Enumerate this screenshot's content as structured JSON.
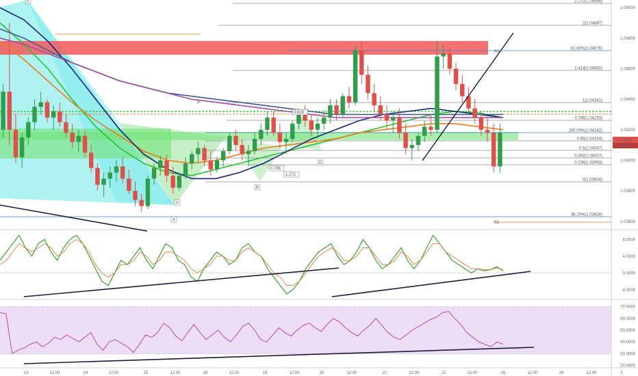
{
  "colors": {
    "up": "#2e9e4a",
    "down": "#e0504a",
    "ma_green": "#22c42a",
    "ma_orange": "#f07b1e",
    "ma_navy": "#1a237e",
    "ma_steel": "#3d5a8a",
    "ma_purple": "#a04aa8",
    "osc_green": "#3aa32e",
    "osc_orange": "#e07a3a",
    "rsi_line": "#b44ab4",
    "rsi_band": "#ead8f5",
    "zone_red": "#f3595b",
    "zone_green": "#74e27a",
    "harmonic_cyan": "#6de8e8",
    "harmonic_green": "#8fe08f",
    "fib_line": "#8c8c8c",
    "price_badge": "#e0504a"
  },
  "chart_data": [
    {
      "type": "line",
      "title": "",
      "x_ticks": [
        "13",
        "12:00",
        "14",
        "12:00",
        "15",
        "12:00",
        "18",
        "12:00",
        "19",
        "12:00",
        "20",
        "12:00",
        "21",
        "12:00",
        "22",
        "12:00",
        "26",
        "12:00",
        "26",
        "12:00",
        "2"
      ],
      "y_ticks": [
        "1.05000",
        "1.04800",
        "1.04600",
        "1.04400",
        "1.04200",
        "1.04000",
        "1.03800",
        "1.03600"
      ],
      "ylim": [
        1.0355,
        1.0505
      ],
      "candles": [
        [
          1.042,
          1.045,
          1.0415,
          1.0445
        ],
        [
          1.0445,
          1.049,
          1.041,
          1.042
        ],
        [
          1.042,
          1.043,
          1.0398,
          1.0402
        ],
        [
          1.0402,
          1.0418,
          1.0395,
          1.0415
        ],
        [
          1.0415,
          1.0428,
          1.041,
          1.0425
        ],
        [
          1.0425,
          1.044,
          1.042,
          1.0435
        ],
        [
          1.0435,
          1.0445,
          1.043,
          1.0438
        ],
        [
          1.0438,
          1.044,
          1.0425,
          1.0428
        ],
        [
          1.0428,
          1.0436,
          1.042,
          1.0432
        ],
        [
          1.0432,
          1.0438,
          1.0422,
          1.0425
        ],
        [
          1.0425,
          1.043,
          1.0415,
          1.0418
        ],
        [
          1.0418,
          1.0424,
          1.0408,
          1.0412
        ],
        [
          1.0412,
          1.042,
          1.0405,
          1.0416
        ],
        [
          1.0416,
          1.042,
          1.0402,
          1.0405
        ],
        [
          1.0405,
          1.041,
          1.0392,
          1.0395
        ],
        [
          1.0395,
          1.0398,
          1.038,
          1.0384
        ],
        [
          1.0384,
          1.0392,
          1.0376,
          1.0388
        ],
        [
          1.0388,
          1.0396,
          1.0382,
          1.0392
        ],
        [
          1.0392,
          1.04,
          1.0386,
          1.0396
        ],
        [
          1.0396,
          1.0402,
          1.0385,
          1.0388
        ],
        [
          1.0388,
          1.0394,
          1.0378,
          1.038
        ],
        [
          1.038,
          1.0386,
          1.037,
          1.0374
        ],
        [
          1.0374,
          1.0378,
          1.0366,
          1.037
        ],
        [
          1.037,
          1.039,
          1.0368,
          1.0388
        ],
        [
          1.0388,
          1.0398,
          1.0384,
          1.0395
        ],
        [
          1.0395,
          1.0403,
          1.039,
          1.04
        ],
        [
          1.04,
          1.0404,
          1.0386,
          1.039
        ],
        [
          1.039,
          1.0396,
          1.0378,
          1.0382
        ],
        [
          1.0382,
          1.0392,
          1.038,
          1.039
        ],
        [
          1.039,
          1.0402,
          1.0388,
          1.0398
        ],
        [
          1.0398,
          1.0406,
          1.0394,
          1.0404
        ],
        [
          1.0404,
          1.0412,
          1.0398,
          1.0408
        ],
        [
          1.0408,
          1.041,
          1.0396,
          1.04
        ],
        [
          1.04,
          1.0406,
          1.039,
          1.0394
        ],
        [
          1.0394,
          1.0402,
          1.0392,
          1.04
        ],
        [
          1.04,
          1.0408,
          1.0396,
          1.0406
        ],
        [
          1.0406,
          1.0418,
          1.0404,
          1.0416
        ],
        [
          1.0416,
          1.042,
          1.0406,
          1.041
        ],
        [
          1.041,
          1.0414,
          1.04,
          1.0404
        ],
        [
          1.0404,
          1.041,
          1.0396,
          1.0406
        ],
        [
          1.0406,
          1.0418,
          1.0404,
          1.0414
        ],
        [
          1.0414,
          1.0424,
          1.041,
          1.042
        ],
        [
          1.042,
          1.0432,
          1.0416,
          1.0428
        ],
        [
          1.0428,
          1.0432,
          1.0416,
          1.0418
        ],
        [
          1.0418,
          1.0424,
          1.0408,
          1.0412
        ],
        [
          1.0412,
          1.0418,
          1.0404,
          1.0414
        ],
        [
          1.0414,
          1.0426,
          1.0412,
          1.0424
        ],
        [
          1.0424,
          1.0434,
          1.042,
          1.043
        ],
        [
          1.043,
          1.0436,
          1.0422,
          1.0426
        ],
        [
          1.0426,
          1.043,
          1.0416,
          1.042
        ],
        [
          1.042,
          1.0428,
          1.0414,
          1.0424
        ],
        [
          1.0424,
          1.0432,
          1.042,
          1.0428
        ],
        [
          1.0428,
          1.044,
          1.0424,
          1.0436
        ],
        [
          1.0436,
          1.044,
          1.0426,
          1.043
        ],
        [
          1.043,
          1.0444,
          1.0428,
          1.0442
        ],
        [
          1.0442,
          1.0448,
          1.0434,
          1.0438
        ],
        [
          1.0438,
          1.0476,
          1.0436,
          1.0472
        ],
        [
          1.0472,
          1.0478,
          1.045,
          1.0456
        ],
        [
          1.0456,
          1.0462,
          1.044,
          1.0444
        ],
        [
          1.0444,
          1.045,
          1.0432,
          1.0436
        ],
        [
          1.0436,
          1.0442,
          1.0426,
          1.043
        ],
        [
          1.043,
          1.0436,
          1.042,
          1.0426
        ],
        [
          1.0426,
          1.0432,
          1.0418,
          1.0428
        ],
        [
          1.0428,
          1.0434,
          1.0414,
          1.0418
        ],
        [
          1.0418,
          1.0424,
          1.0404,
          1.0408
        ],
        [
          1.0408,
          1.0414,
          1.04,
          1.041
        ],
        [
          1.041,
          1.0418,
          1.0406,
          1.0416
        ],
        [
          1.0416,
          1.0426,
          1.0412,
          1.0422
        ],
        [
          1.0422,
          1.043,
          1.0416,
          1.042
        ],
        [
          1.042,
          1.0478,
          1.0418,
          1.0468
        ],
        [
          1.0468,
          1.0476,
          1.046,
          1.047
        ],
        [
          1.047,
          1.0474,
          1.0456,
          1.046
        ],
        [
          1.046,
          1.0464,
          1.0446,
          1.045
        ],
        [
          1.045,
          1.0456,
          1.0438,
          1.0442
        ],
        [
          1.0442,
          1.0448,
          1.043,
          1.0434
        ],
        [
          1.0434,
          1.044,
          1.0424,
          1.0428
        ],
        [
          1.0428,
          1.0432,
          1.0416,
          1.042
        ],
        [
          1.042,
          1.0428,
          1.0412,
          1.0418
        ],
        [
          1.0418,
          1.0424,
          1.0392,
          1.0396
        ],
        [
          1.0396,
          1.0424,
          1.0392,
          1.0418
        ]
      ],
      "series": [
        {
          "values": [
            1.049,
            1.0476,
            1.046,
            1.044,
            1.0422,
            1.0408,
            1.0398,
            1.0392,
            1.039,
            1.0394,
            1.0398,
            1.0402,
            1.0406,
            1.041,
            1.0414,
            1.0418,
            1.0422,
            1.0426,
            1.043,
            1.0432,
            1.0431,
            1.0428
          ]
        },
        {
          "values": [
            1.0478,
            1.0466,
            1.0452,
            1.0438,
            1.0426,
            1.0416,
            1.0406,
            1.04,
            1.0398,
            1.04,
            1.0404,
            1.0408,
            1.041,
            1.0412,
            1.0414,
            1.0418,
            1.042,
            1.0422,
            1.0424,
            1.0424,
            1.0422,
            1.042
          ]
        },
        {
          "values": [
            1.05,
            1.0492,
            1.0478,
            1.046,
            1.044,
            1.042,
            1.0404,
            1.0394,
            1.0388,
            1.0388,
            1.0392,
            1.0398,
            1.0406,
            1.0414,
            1.042,
            1.0426,
            1.043,
            1.0432,
            1.0434,
            1.0432,
            1.043,
            1.0428
          ]
        },
        {
          "values": [
            1.0486,
            1.048,
            1.0472,
            1.0464,
            1.0458,
            1.0452,
            1.0448,
            1.0444,
            1.0442,
            1.044,
            1.0438,
            1.0436,
            1.0434,
            1.0432,
            1.043,
            1.043,
            1.043,
            1.043,
            1.043,
            1.043,
            1.043,
            1.043
          ]
        },
        {
          "values": [
            1.048,
            1.0476,
            1.047,
            1.0464,
            1.0458,
            1.0452,
            1.0448,
            1.0444,
            1.044,
            1.0438,
            1.0436,
            1.0434,
            1.0432,
            1.043,
            1.0428,
            1.0428,
            1.0428,
            1.0428,
            1.0428,
            1.0428,
            1.0428,
            1.0428
          ]
        }
      ]
    },
    {
      "type": "line",
      "y_ticks": [
        "8.0000",
        "4.0000",
        "0.0000",
        "-4.0000"
      ],
      "ylim": [
        -6,
        10
      ],
      "series": [
        {
          "values": [
            3,
            5,
            7,
            9,
            6,
            4,
            7,
            8,
            5,
            3,
            6,
            8,
            9,
            7,
            4,
            1,
            -2,
            -3,
            0,
            3,
            2,
            4,
            6,
            3,
            1,
            4,
            7,
            6,
            3,
            2,
            -1,
            -2,
            1,
            3,
            5,
            4,
            2,
            3,
            6,
            7,
            5,
            4,
            1,
            -1,
            -3,
            -5,
            -4,
            -2,
            1,
            3,
            5,
            6,
            7,
            4,
            2,
            3,
            5,
            8,
            6,
            3,
            1,
            2,
            4,
            6,
            3,
            1,
            3,
            6,
            9,
            7,
            5,
            3,
            2,
            1,
            0,
            1,
            0.5,
            0.8,
            1.5,
            0.5
          ]
        },
        {
          "values": [
            2,
            3,
            5,
            7,
            6,
            5,
            6,
            7,
            6,
            4,
            5,
            7,
            8,
            7,
            5,
            2,
            0,
            -1,
            0,
            2,
            2,
            3,
            5,
            4,
            2,
            3,
            5,
            5,
            4,
            3,
            1,
            0,
            1,
            2,
            4,
            4,
            3,
            3,
            5,
            6,
            5,
            4,
            2,
            0,
            -1,
            -3,
            -3,
            -2,
            0,
            2,
            4,
            5,
            6,
            5,
            3,
            3,
            4,
            6,
            6,
            4,
            2,
            2,
            3,
            5,
            4,
            2,
            3,
            5,
            7,
            7,
            5,
            4,
            3,
            2,
            1,
            1,
            0.8,
            0.8,
            1.2,
            0.8
          ]
        }
      ]
    },
    {
      "type": "line",
      "y_ticks": [
        "70.0000",
        "60.0000",
        "50.0000",
        "40.0000",
        "30.0000",
        "20.0000"
      ],
      "ylim": [
        18,
        75
      ],
      "series": [
        {
          "values": [
            65,
            64,
            30,
            33,
            35,
            38,
            40,
            36,
            39,
            44,
            42,
            46,
            43,
            40,
            44,
            48,
            38,
            33,
            40,
            42,
            39,
            36,
            31,
            38,
            46,
            44,
            48,
            56,
            52,
            45,
            41,
            48,
            55,
            48,
            42,
            46,
            50,
            44,
            40,
            46,
            53,
            56,
            50,
            42,
            40,
            46,
            52,
            48,
            45,
            50,
            54,
            56,
            52,
            49,
            55,
            60,
            57,
            52,
            48,
            45,
            50,
            54,
            60,
            54,
            48,
            44,
            42,
            46,
            50,
            53,
            56,
            59,
            61,
            65,
            66,
            60,
            55,
            48,
            44,
            40,
            38,
            36,
            40,
            38
          ]
        }
      ]
    }
  ],
  "fib_levels": [
    "2.272(1.04985)",
    "2(1.04847)",
    "61.80%(1.04676)",
    "1.414(1.04550)",
    "1(1.04341)",
    "0.786(1.04233)",
    "100.00%(1.04182)",
    "0.65(1.04164)",
    "0.5(1.04087)",
    "0.382(1.04027)",
    "0.236(1.03953)",
    "0(1.03834)",
    "38.20%(1.03628)"
  ],
  "price_badge": {
    "price": "1.04116",
    "countdown": "54:33"
  },
  "markers": {
    "pivot": "P",
    "resistance": "R1",
    "support": "S1"
  },
  "harmonic_labels": [
    "X",
    "A",
    "B",
    "C",
    "D",
    "0",
    "0.786",
    "1.272",
    "0.618"
  ]
}
